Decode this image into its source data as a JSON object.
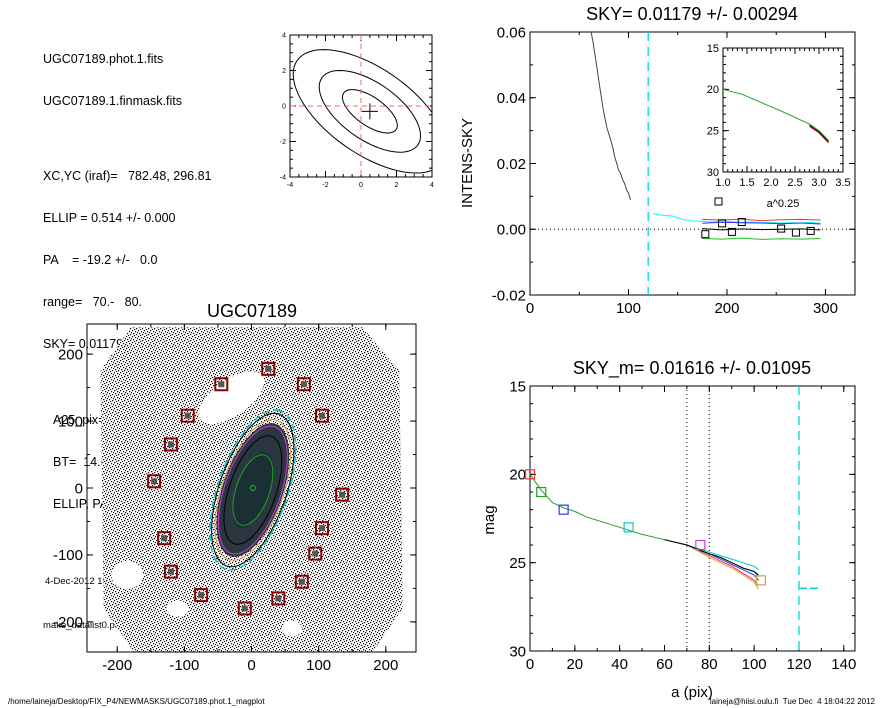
{
  "header_info": {
    "file1": "UGC07189.phot.1.fits",
    "file2": "UGC07189.1.finmask.fits",
    "xcyc": "XC,YC (iraf)=   782.48, 296.81",
    "ellip": "ELLIP = 0.514 +/- 0.000",
    "pa": "PA    = -19.2 +/-   0.0",
    "range": "range=   70.-   80.",
    "sky": "SKY= 0.01179 +/- 0.00294",
    "a25": "A25_pix= 54.6   T= 8.0  B",
    "bt": "BT=  14.68   MABS=-18.16",
    "ellip_pa": "ELLIP, PA= 0.429  177.0",
    "date": "4-Dec-2012 18:04:22.00",
    "program": "make_datalist0.pro (version HS230610)"
  },
  "footer": {
    "left": "/home/laineja/Desktop/FIX_P4/NEWMASKS/UGC07189.phot.1_magplot",
    "right": "laineja@hiisi.oulu.fi  Tue Dec  4 18:04:22 2012"
  },
  "chart_data": [
    {
      "type": "line",
      "id": "center_contours",
      "xlim": [
        -4,
        4
      ],
      "ylim": [
        -4,
        4
      ],
      "xticks": [
        "-4",
        "-2",
        "0",
        "2",
        "4"
      ],
      "yticks": [
        "-4",
        "-2",
        "0",
        "2",
        "4"
      ],
      "center": [
        0.5,
        -0.3
      ],
      "ellipses": [
        {
          "a": 1.8,
          "b": 0.8,
          "angle": -35
        },
        {
          "a": 3.3,
          "b": 1.6,
          "angle": -35
        },
        {
          "a": 5.0,
          "b": 2.4,
          "angle": -35
        }
      ],
      "crosshair": [
        0,
        0
      ]
    },
    {
      "type": "line",
      "id": "intens_sky",
      "title": "SKY= 0.01179 +/- 0.00294",
      "ylabel": "INTENS-SKY",
      "xlim": [
        0,
        330
      ],
      "ylim": [
        -0.02,
        0.06
      ],
      "xticks": [
        "0",
        "100",
        "200",
        "300"
      ],
      "yticks": [
        "-0.02",
        "0.00",
        "0.02",
        "0.04",
        "0.06"
      ],
      "vline_x": 120,
      "profile": {
        "x": [
          62,
          64,
          66,
          68,
          70,
          72,
          74,
          76,
          78,
          80,
          82,
          84,
          86,
          88,
          90,
          92,
          94,
          96,
          98,
          100,
          102
        ],
        "y": [
          0.06,
          0.057,
          0.053,
          0.049,
          0.045,
          0.041,
          0.037,
          0.034,
          0.031,
          0.029,
          0.027,
          0.025,
          0.022,
          0.02,
          0.018,
          0.017,
          0.015,
          0.014,
          0.012,
          0.011,
          0.009
        ]
      },
      "sky_series": [
        {
          "color": "#00ffff",
          "x": [
            125,
            135,
            145,
            155,
            165,
            175,
            185,
            195,
            205,
            215,
            225,
            235,
            245,
            255,
            265,
            275,
            285,
            295
          ],
          "y": [
            0.0048,
            0.0042,
            0.004,
            0.003,
            0.0025,
            0.0024,
            0.0022,
            0.0025,
            0.0023,
            0.0021,
            0.0022,
            0.002,
            0.0021,
            0.0019,
            0.002,
            0.0019,
            0.0021,
            0.0018
          ]
        },
        {
          "color": "#ff3030",
          "x": [
            175,
            195,
            215,
            235,
            255,
            275,
            295
          ],
          "y": [
            0.003,
            0.0028,
            0.0031,
            0.0026,
            0.0029,
            0.003,
            0.0028
          ]
        },
        {
          "color": "#3030ff",
          "x": [
            175,
            195,
            215,
            235,
            255,
            275,
            295
          ],
          "y": [
            0.0018,
            0.0021,
            0.002,
            0.0019,
            0.0017,
            0.0019,
            0.0016
          ]
        },
        {
          "color": "#000000",
          "x": [
            175,
            195,
            215,
            235,
            255,
            275,
            295
          ],
          "y": [
            0.0002,
            -0.0002,
            0.0001,
            -0.0001,
            0.0,
            0.0001,
            -0.0002
          ]
        },
        {
          "color": "#20c020",
          "x": [
            175,
            195,
            215,
            235,
            255,
            275,
            295
          ],
          "y": [
            -0.0028,
            -0.003,
            -0.0027,
            -0.0031,
            -0.0029,
            -0.003,
            -0.0028
          ]
        }
      ],
      "squares": {
        "x": [
          178,
          195,
          205,
          215,
          255,
          270,
          285
        ],
        "y": [
          -0.0015,
          0.0018,
          -0.0008,
          0.0022,
          0.0002,
          -0.001,
          -0.0005
        ]
      },
      "inset": {
        "xlim": [
          1.0,
          3.5
        ],
        "ylim": [
          15,
          30
        ],
        "xticks": [
          "1.0",
          "1.5",
          "2.0",
          "2.5",
          "3.0",
          "3.5"
        ],
        "yticks": [
          "15",
          "20",
          "25",
          "30"
        ],
        "xlabel": "a^0.25",
        "curve": {
          "x": [
            1.0,
            1.4,
            1.8,
            2.2,
            2.5,
            2.8,
            3.0,
            3.1,
            3.2
          ],
          "y": [
            20.0,
            20.6,
            21.6,
            22.6,
            23.4,
            24.2,
            25.0,
            25.6,
            26.2
          ]
        }
      }
    },
    {
      "type": "scatter",
      "id": "galaxy_image",
      "title": "UGC07189",
      "xlim": [
        -245,
        245
      ],
      "ylim": [
        -245,
        245
      ],
      "xticks": [
        "-200",
        "-100",
        "0",
        "100",
        "200"
      ],
      "yticks": [
        "-200",
        "-100",
        "0",
        "100",
        "200"
      ],
      "ellipses": [
        {
          "a": 125,
          "b": 52,
          "angle": 71,
          "color": "#00c8c8",
          "dash": true
        },
        {
          "a": 120,
          "b": 50,
          "angle": 71,
          "color": "#000000",
          "dash": false
        },
        {
          "a": 110,
          "b": 46,
          "angle": 71,
          "color": "#d2a050",
          "dash": false
        },
        {
          "a": 100,
          "b": 42,
          "angle": 71,
          "color": "#d040d0",
          "dash": false
        },
        {
          "a": 85,
          "b": 35,
          "angle": 71,
          "color": "#000000",
          "dash": false
        },
        {
          "a": 55,
          "b": 25,
          "angle": 71,
          "color": "#20a020",
          "dash": false
        }
      ],
      "sky_boxes": [
        [
          25,
          178
        ],
        [
          -45,
          155
        ],
        [
          78,
          155
        ],
        [
          -95,
          108
        ],
        [
          105,
          108
        ],
        [
          -120,
          65
        ],
        [
          -145,
          10
        ],
        [
          135,
          -10
        ],
        [
          -130,
          -75
        ],
        [
          105,
          -60
        ],
        [
          -120,
          -125
        ],
        [
          95,
          -98
        ],
        [
          -75,
          -160
        ],
        [
          75,
          -140
        ],
        [
          -10,
          -180
        ],
        [
          40,
          -165
        ]
      ]
    },
    {
      "type": "line",
      "id": "mag_profile",
      "title": "SKY_m=  0.01616 +/- 0.01095",
      "xlabel": "a (pix)",
      "ylabel": "mag",
      "xlim": [
        0,
        145
      ],
      "ylim": [
        30,
        15
      ],
      "xticks": [
        "0",
        "20",
        "40",
        "60",
        "80",
        "100",
        "120",
        "140"
      ],
      "yticks": [
        "15",
        "20",
        "25",
        "30"
      ],
      "dotted_x": [
        70,
        80
      ],
      "dashed_x": 120,
      "cyan_segment": {
        "x": [
          120,
          130
        ],
        "y": 26.45
      },
      "series": [
        {
          "color": "#20a020",
          "x": [
            0,
            5,
            10,
            15,
            20,
            25,
            30,
            40,
            50,
            60,
            70,
            80,
            85,
            90,
            95,
            100,
            102
          ],
          "y": [
            20.0,
            20.9,
            21.6,
            21.9,
            22.1,
            22.4,
            22.6,
            23.0,
            23.4,
            23.7,
            24.0,
            24.5,
            24.7,
            25.0,
            25.3,
            25.5,
            25.8
          ]
        },
        {
          "color": "#ff3030",
          "x": [
            60,
            70,
            80,
            85,
            90,
            95,
            100,
            102
          ],
          "y": [
            23.7,
            24.0,
            24.6,
            24.9,
            25.2,
            25.6,
            26.0,
            26.3
          ]
        },
        {
          "color": "#3030ff",
          "x": [
            60,
            70,
            80,
            85,
            90,
            95,
            100,
            102
          ],
          "y": [
            23.7,
            24.0,
            24.5,
            24.8,
            25.1,
            25.4,
            25.7,
            26.0
          ]
        },
        {
          "color": "#00c8c8",
          "x": [
            60,
            70,
            80,
            85,
            90,
            95,
            100,
            102
          ],
          "y": [
            23.7,
            24.0,
            24.4,
            24.6,
            24.8,
            25.0,
            25.2,
            25.4
          ]
        },
        {
          "color": "#d2a050",
          "x": [
            60,
            70,
            80,
            85,
            90,
            95,
            100,
            102
          ],
          "y": [
            23.7,
            24.0,
            24.7,
            25.0,
            25.3,
            25.7,
            26.1,
            26.5
          ]
        },
        {
          "color": "#000000",
          "x": [
            60,
            70,
            80,
            85,
            90,
            95,
            100,
            102
          ],
          "y": [
            23.7,
            24.0,
            24.5,
            24.7,
            25.0,
            25.3,
            25.5,
            25.7
          ]
        }
      ],
      "markers": [
        {
          "x": 0,
          "y": 20.0,
          "color": "#ff3030"
        },
        {
          "x": 5,
          "y": 21.0,
          "color": "#20a020"
        },
        {
          "x": 15,
          "y": 22.0,
          "color": "#3030ff"
        },
        {
          "x": 44,
          "y": 23.0,
          "color": "#00c8c8"
        },
        {
          "x": 76,
          "y": 24.0,
          "color": "#d040d0"
        },
        {
          "x": 103,
          "y": 26.0,
          "color": "#d2a050"
        }
      ]
    }
  ]
}
